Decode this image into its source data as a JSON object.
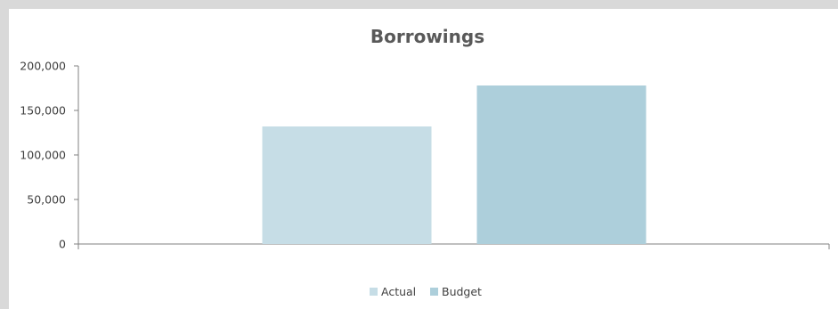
{
  "chart_data": {
    "type": "bar",
    "title": "Borrowings",
    "categories": [
      ""
    ],
    "series": [
      {
        "name": "Actual",
        "values": [
          132000
        ],
        "color": "#c6dde6"
      },
      {
        "name": "Budget",
        "values": [
          178000
        ],
        "color": "#adcfdb"
      }
    ],
    "xlabel": "",
    "ylabel": "",
    "ylim": [
      0,
      200000
    ],
    "yticks": [
      0,
      50000,
      100000,
      150000,
      200000
    ],
    "ytick_labels": [
      "0",
      "50,000",
      "100,000",
      "150,000",
      "200,000"
    ],
    "grid": false,
    "legend_position": "bottom"
  }
}
